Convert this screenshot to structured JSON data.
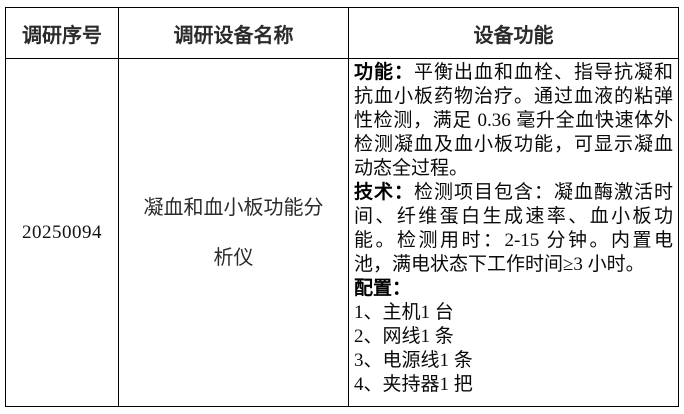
{
  "colors": {
    "border": "#000000",
    "background": "#ffffff"
  },
  "table": {
    "headers": [
      "调研序号",
      "调研设备名称",
      "设备功能"
    ],
    "row": {
      "serial": "20250094",
      "device_name": "凝血和血小板功能分析仪",
      "function": {
        "sections": [
          {
            "label": "功能：",
            "text": "平衡出血和血栓、指导抗凝和抗血小板药物治疗。通过血液的粘弹性检测，满足 0.36 毫升全血快速体外检测凝血及血小板功能，可显示凝血动态全过程。"
          },
          {
            "label": "技术：",
            "text": "检测项目包含：凝血酶激活时间、纤维蛋白生成速率、血小板功能。检测用时：2-15 分钟。内置电池，满电状态下工作时间≥3 小时。"
          },
          {
            "label": "配置：",
            "text": ""
          }
        ],
        "config_items": [
          {
            "name": "1、主机",
            "qty": "1 台"
          },
          {
            "name": "2、网线",
            "qty": "1 条"
          },
          {
            "name": "3、电源线",
            "qty": "1 条"
          },
          {
            "name": "4、夹持器",
            "qty": "1 把"
          }
        ]
      }
    }
  }
}
